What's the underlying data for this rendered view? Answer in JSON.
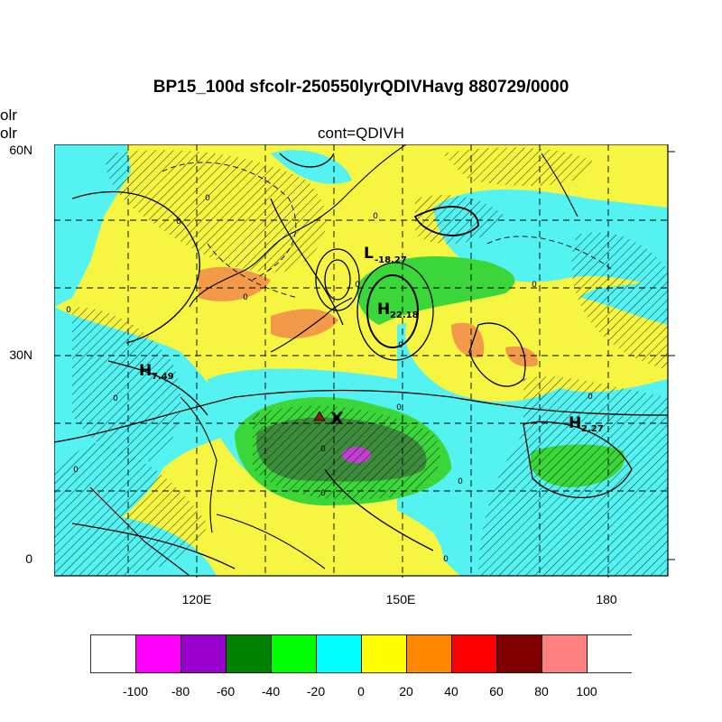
{
  "title": "BP15_100d sfcolr-250550lyrQDIVHavg  880729/0000",
  "subtitle": "cont=QDIVH",
  "left_clip_text": [
    "olr",
    "olr"
  ],
  "lat_labels": [
    "60N",
    "30N",
    "0"
  ],
  "lon_labels": [
    "120E",
    "150E",
    "180"
  ],
  "markers": {
    "highs": [
      {
        "letter": "H",
        "value": "7.49"
      },
      {
        "letter": "H",
        "value": "22.18"
      },
      {
        "letter": "H",
        "value": "2.27"
      }
    ],
    "lows": [
      {
        "letter": "L",
        "value": "-18.27"
      }
    ],
    "x_marker": "X",
    "triangle_color": "#8b1a1a"
  },
  "contour_labels": [
    "0",
    "0",
    "0",
    "0",
    "0",
    "0",
    "0",
    "0",
    "0",
    "0",
    "0",
    "0",
    "0",
    "0",
    "0",
    "0"
  ],
  "colorbar": {
    "labels": [
      "-100",
      "-80",
      "-60",
      "-40",
      "-20",
      "0",
      "20",
      "40",
      "60",
      "80",
      "100"
    ],
    "colors": [
      "#ffffff",
      "#ff00ff",
      "#9900cc",
      "#008000",
      "#00ff00",
      "#00ffff",
      "#ffff00",
      "#ff8800",
      "#ff0000",
      "#800000",
      "#ff8080",
      "#ffffff"
    ]
  },
  "map_colors": {
    "ocean_cyan": "#55f2f2",
    "yellow": "#f5f542",
    "green": "#3ad63a",
    "dark_green": "#3c8c3c",
    "orange": "#f29a4a",
    "magenta": "#c040d0",
    "land_line": "#000000"
  }
}
